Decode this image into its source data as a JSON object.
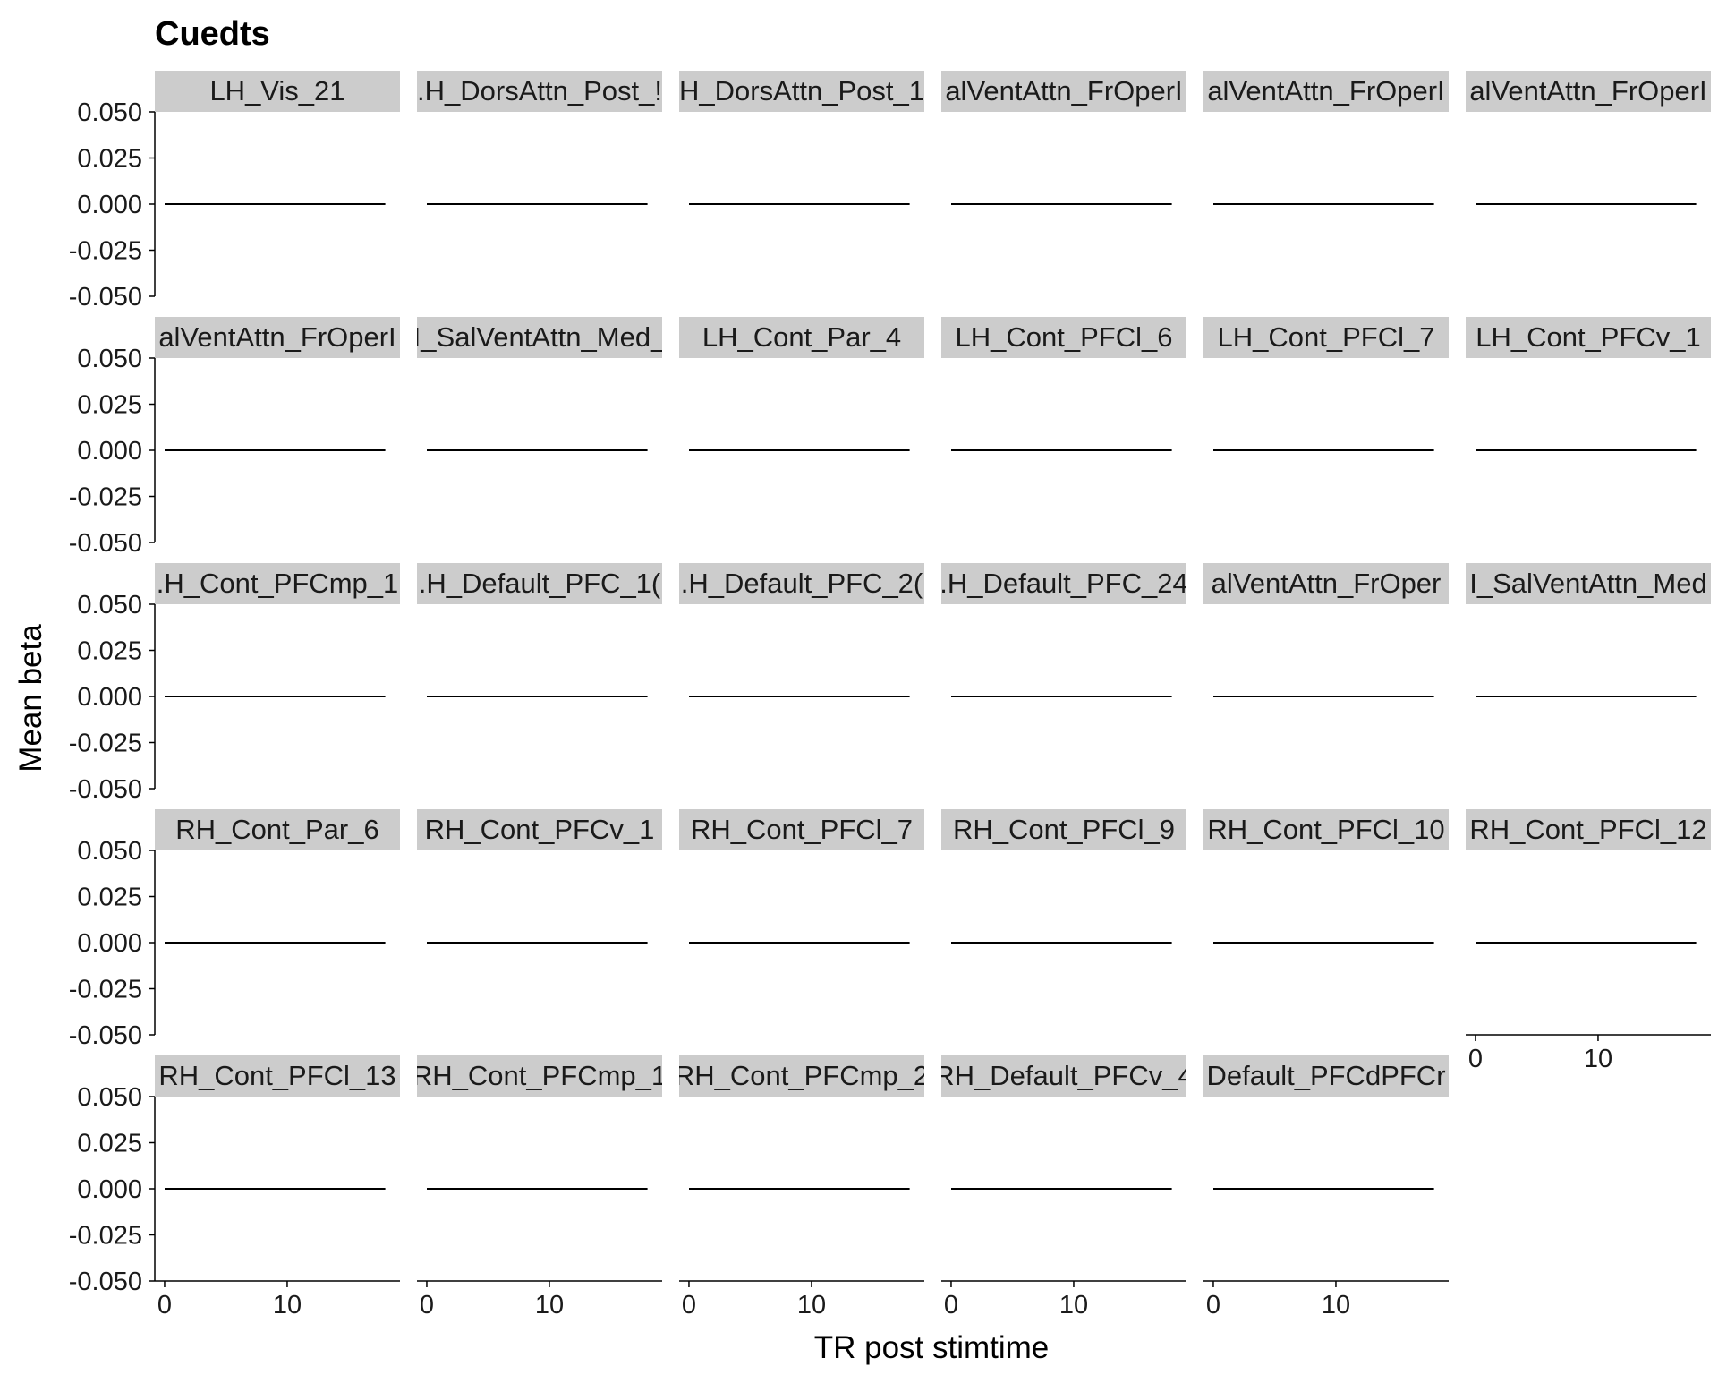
{
  "chart_data": {
    "type": "line",
    "title": "Cuedts",
    "xlabel": "TR post stimtime",
    "ylabel": "Mean beta",
    "ylim": [
      -0.05,
      0.05
    ],
    "xlim": [
      -0.8,
      19.2
    ],
    "y_ticks": [
      0.05,
      0.025,
      0.0,
      -0.025,
      -0.05
    ],
    "y_tick_labels": [
      "0.050",
      "0.025",
      "0.000",
      "-0.025",
      "-0.050"
    ],
    "x_ticks": [
      0,
      10
    ],
    "x_tick_labels": [
      "0",
      "10"
    ],
    "grid": false,
    "legend": "none",
    "line_color": "#000000",
    "strip_color": "#cccccc",
    "ncol": 6,
    "panels": [
      {
        "label": "LH_Vis_21",
        "x": [
          0,
          18
        ],
        "y": [
          0,
          0
        ]
      },
      {
        "label": ".H_DorsAttn_Post_!",
        "x": [
          0,
          18
        ],
        "y": [
          0,
          0
        ]
      },
      {
        "label": "H_DorsAttn_Post_1",
        "x": [
          0,
          18
        ],
        "y": [
          0,
          0
        ]
      },
      {
        "label": "alVentAttn_FrOperI",
        "x": [
          0,
          18
        ],
        "y": [
          0,
          0
        ]
      },
      {
        "label": "alVentAttn_FrOperI",
        "x": [
          0,
          18
        ],
        "y": [
          0,
          0
        ]
      },
      {
        "label": "alVentAttn_FrOperI",
        "x": [
          0,
          18
        ],
        "y": [
          0,
          0
        ]
      },
      {
        "label": "alVentAttn_FrOperI",
        "x": [
          0,
          18
        ],
        "y": [
          0,
          0
        ]
      },
      {
        "label": "I_SalVentAttn_Med_",
        "x": [
          0,
          18
        ],
        "y": [
          0,
          0
        ]
      },
      {
        "label": "LH_Cont_Par_4",
        "x": [
          0,
          18
        ],
        "y": [
          0,
          0
        ]
      },
      {
        "label": "LH_Cont_PFCl_6",
        "x": [
          0,
          18
        ],
        "y": [
          0,
          0
        ]
      },
      {
        "label": "LH_Cont_PFCl_7",
        "x": [
          0,
          18
        ],
        "y": [
          0,
          0
        ]
      },
      {
        "label": "LH_Cont_PFCv_1",
        "x": [
          0,
          18
        ],
        "y": [
          0,
          0
        ]
      },
      {
        "label": ".H_Cont_PFCmp_1",
        "x": [
          0,
          18
        ],
        "y": [
          0,
          0
        ]
      },
      {
        "label": ".H_Default_PFC_1(",
        "x": [
          0,
          18
        ],
        "y": [
          0,
          0
        ]
      },
      {
        "label": ".H_Default_PFC_2(",
        "x": [
          0,
          18
        ],
        "y": [
          0,
          0
        ]
      },
      {
        "label": ".H_Default_PFC_24",
        "x": [
          0,
          18
        ],
        "y": [
          0,
          0
        ]
      },
      {
        "label": "alVentAttn_FrOper",
        "x": [
          0,
          18
        ],
        "y": [
          0,
          0
        ]
      },
      {
        "label": "I_SalVentAttn_Med",
        "x": [
          0,
          18
        ],
        "y": [
          0,
          0
        ]
      },
      {
        "label": "RH_Cont_Par_6",
        "x": [
          0,
          18
        ],
        "y": [
          0,
          0
        ]
      },
      {
        "label": "RH_Cont_PFCv_1",
        "x": [
          0,
          18
        ],
        "y": [
          0,
          0
        ]
      },
      {
        "label": "RH_Cont_PFCl_7",
        "x": [
          0,
          18
        ],
        "y": [
          0,
          0
        ]
      },
      {
        "label": "RH_Cont_PFCl_9",
        "x": [
          0,
          18
        ],
        "y": [
          0,
          0
        ]
      },
      {
        "label": "RH_Cont_PFCl_10",
        "x": [
          0,
          18
        ],
        "y": [
          0,
          0
        ]
      },
      {
        "label": "RH_Cont_PFCl_12",
        "x": [
          0,
          18
        ],
        "y": [
          0,
          0
        ]
      },
      {
        "label": "RH_Cont_PFCl_13",
        "x": [
          0,
          18
        ],
        "y": [
          0,
          0
        ]
      },
      {
        "label": "RH_Cont_PFCmp_1",
        "x": [
          0,
          18
        ],
        "y": [
          0,
          0
        ]
      },
      {
        "label": "RH_Cont_PFCmp_2",
        "x": [
          0,
          18
        ],
        "y": [
          0,
          0
        ]
      },
      {
        "label": "RH_Default_PFCv_4",
        "x": [
          0,
          18
        ],
        "y": [
          0,
          0
        ]
      },
      {
        "label": "Default_PFCdPFCr",
        "x": [
          0,
          18
        ],
        "y": [
          0,
          0
        ]
      }
    ]
  }
}
